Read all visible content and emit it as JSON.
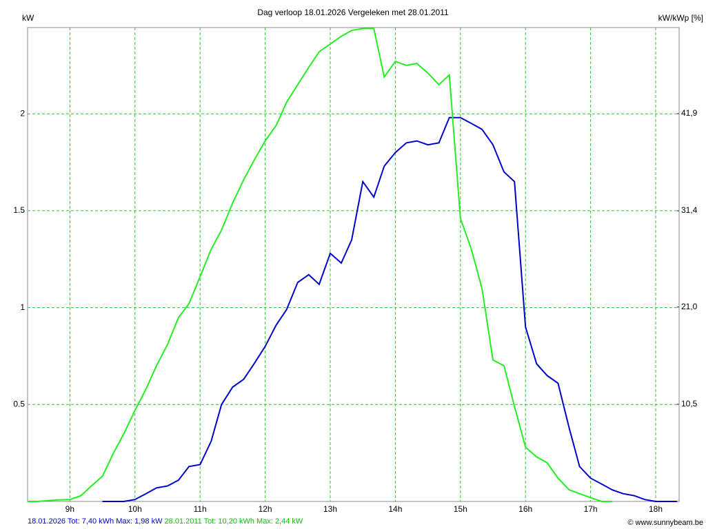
{
  "chart_data": {
    "type": "line",
    "title": "Dag  verloop 18.01.2026   Vergeleken met 28.01.2011",
    "y_label": "kW",
    "y2_label": "kW/kWp [%]",
    "credit": "© www.sunnybeam.be",
    "xlim": [
      8.35,
      18.36
    ],
    "xticks": [
      {
        "value": 9,
        "label": "9h"
      },
      {
        "value": 10,
        "label": "10h"
      },
      {
        "value": 11,
        "label": "11h"
      },
      {
        "value": 12,
        "label": "12h"
      },
      {
        "value": 13,
        "label": "13h"
      },
      {
        "value": 14,
        "label": "14h"
      },
      {
        "value": 15,
        "label": "15h"
      },
      {
        "value": 16,
        "label": "16h"
      },
      {
        "value": 17,
        "label": "17h"
      },
      {
        "value": 18,
        "label": "18h"
      }
    ],
    "ylim": [
      0,
      2.445
    ],
    "yticks": [
      0.5,
      1,
      1.5,
      2
    ],
    "y2lim": [
      0,
      51.2
    ],
    "y2ticks": [
      {
        "value": 10.5,
        "label": "10,5"
      },
      {
        "value": 21.0,
        "label": "21,0"
      },
      {
        "value": 31.4,
        "label": "31,4"
      },
      {
        "value": 41.9,
        "label": "41,9"
      }
    ],
    "grid": true,
    "grid_color": "#22cc22",
    "series": [
      {
        "name": "18.01.2026 Tot: 7,40 kWh Max: 1,98 kW",
        "color": "#0000cc",
        "x": [
          9.5,
          9.67,
          9.83,
          10.0,
          10.17,
          10.33,
          10.5,
          10.67,
          10.83,
          11.0,
          11.17,
          11.33,
          11.5,
          11.67,
          11.83,
          12.0,
          12.17,
          12.33,
          12.5,
          12.67,
          12.83,
          13.0,
          13.17,
          13.33,
          13.5,
          13.67,
          13.83,
          14.0,
          14.17,
          14.33,
          14.5,
          14.67,
          14.83,
          15.0,
          15.17,
          15.33,
          15.5,
          15.67,
          15.83,
          16.0,
          16.17,
          16.33,
          16.5,
          16.67,
          16.83,
          17.0,
          17.17,
          17.33,
          17.5,
          17.67,
          17.83,
          18.0,
          18.33
        ],
        "values": [
          0,
          0,
          0,
          0.01,
          0.04,
          0.07,
          0.08,
          0.11,
          0.18,
          0.19,
          0.31,
          0.5,
          0.59,
          0.63,
          0.71,
          0.8,
          0.91,
          0.99,
          1.13,
          1.17,
          1.12,
          1.28,
          1.23,
          1.35,
          1.65,
          1.57,
          1.73,
          1.8,
          1.85,
          1.86,
          1.84,
          1.85,
          1.98,
          1.98,
          1.95,
          1.92,
          1.84,
          1.7,
          1.65,
          0.9,
          0.71,
          0.65,
          0.61,
          0.38,
          0.18,
          0.12,
          0.09,
          0.06,
          0.04,
          0.03,
          0.01,
          0,
          0
        ]
      },
      {
        "name": "28.01.2011 Tot: 10,20 kWh Max: 2,44 kW",
        "color": "#22ee22",
        "x": [
          8.35,
          8.5,
          8.67,
          8.83,
          9.0,
          9.17,
          9.33,
          9.5,
          9.67,
          9.83,
          10.0,
          10.17,
          10.33,
          10.5,
          10.67,
          10.83,
          11.0,
          11.17,
          11.33,
          11.5,
          11.67,
          11.83,
          12.0,
          12.17,
          12.33,
          12.5,
          12.67,
          12.83,
          13.0,
          13.17,
          13.33,
          13.5,
          13.67,
          13.83,
          14.0,
          14.17,
          14.33,
          14.5,
          14.67,
          14.83,
          15.0,
          15.17,
          15.33,
          15.5,
          15.67,
          15.83,
          16.0,
          16.17,
          16.33,
          16.5,
          16.67,
          16.83,
          17.0,
          17.17,
          17.33
        ],
        "values": [
          0,
          0,
          0.005,
          0.008,
          0.01,
          0.03,
          0.08,
          0.13,
          0.25,
          0.35,
          0.47,
          0.58,
          0.7,
          0.81,
          0.95,
          1.02,
          1.16,
          1.3,
          1.4,
          1.54,
          1.66,
          1.76,
          1.86,
          1.94,
          2.06,
          2.15,
          2.24,
          2.32,
          2.36,
          2.4,
          2.43,
          2.44,
          2.44,
          2.19,
          2.27,
          2.25,
          2.26,
          2.21,
          2.15,
          2.2,
          1.46,
          1.3,
          1.1,
          0.73,
          0.7,
          0.49,
          0.28,
          0.23,
          0.2,
          0.12,
          0.06,
          0.04,
          0.02,
          0,
          0
        ]
      }
    ]
  }
}
